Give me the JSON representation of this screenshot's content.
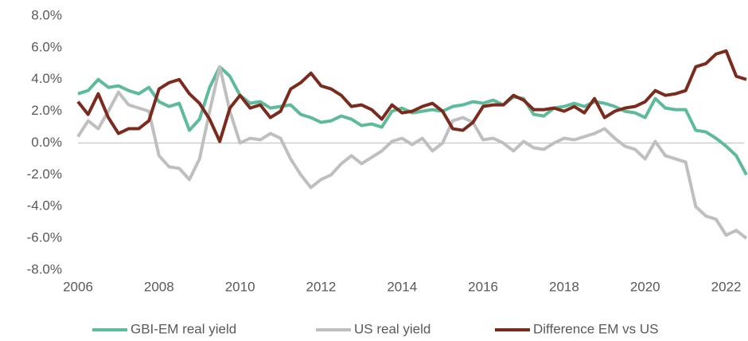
{
  "chart_data": {
    "type": "line",
    "x": [
      2006,
      2006.25,
      2006.5,
      2006.75,
      2007,
      2007.25,
      2007.5,
      2007.75,
      2008,
      2008.25,
      2008.5,
      2008.75,
      2009,
      2009.25,
      2009.5,
      2009.75,
      2010,
      2010.25,
      2010.5,
      2010.75,
      2011,
      2011.25,
      2011.5,
      2011.75,
      2012,
      2012.25,
      2012.5,
      2012.75,
      2013,
      2013.25,
      2013.5,
      2013.75,
      2014,
      2014.25,
      2014.5,
      2014.75,
      2015,
      2015.25,
      2015.5,
      2015.75,
      2016,
      2016.25,
      2016.5,
      2016.75,
      2017,
      2017.25,
      2017.5,
      2017.75,
      2018,
      2018.25,
      2018.5,
      2018.75,
      2019,
      2019.25,
      2019.5,
      2019.75,
      2020,
      2020.25,
      2020.5,
      2020.75,
      2021,
      2021.25,
      2021.5,
      2021.75,
      2022,
      2022.25,
      2022.5
    ],
    "series": [
      {
        "name": "GBI-EM real yield",
        "color": "#5dbb9a",
        "values": [
          3.1,
          3.3,
          4.0,
          3.5,
          3.6,
          3.3,
          3.1,
          3.5,
          2.6,
          2.3,
          2.5,
          0.8,
          1.5,
          3.5,
          4.8,
          4.2,
          3.0,
          2.5,
          2.6,
          2.2,
          2.3,
          2.4,
          1.8,
          1.6,
          1.3,
          1.4,
          1.7,
          1.5,
          1.1,
          1.2,
          1.0,
          2.0,
          2.2,
          1.9,
          2.0,
          2.1,
          2.0,
          2.3,
          2.4,
          2.6,
          2.5,
          2.7,
          2.4,
          2.9,
          2.8,
          1.8,
          1.7,
          2.2,
          2.3,
          2.5,
          2.3,
          2.6,
          2.5,
          2.3,
          2.0,
          1.9,
          1.6,
          2.8,
          2.2,
          2.1,
          2.1,
          0.8,
          0.7,
          0.3,
          -0.2,
          -0.8,
          -2.0
        ]
      },
      {
        "name": "US real yield",
        "color": "#bfbfbf",
        "values": [
          0.4,
          1.4,
          0.9,
          2.0,
          3.2,
          2.4,
          2.2,
          2.0,
          -0.8,
          -1.5,
          -1.6,
          -2.3,
          -1.0,
          2.0,
          4.8,
          2.0,
          0.0,
          0.3,
          0.2,
          0.6,
          0.3,
          -1.0,
          -2.0,
          -2.8,
          -2.3,
          -2.0,
          -1.3,
          -0.8,
          -1.3,
          -0.9,
          -0.5,
          0.1,
          0.3,
          -0.1,
          0.3,
          -0.5,
          0.0,
          1.4,
          1.6,
          1.3,
          0.2,
          0.3,
          0.0,
          -0.5,
          0.1,
          -0.3,
          -0.4,
          0.0,
          0.3,
          0.2,
          0.4,
          0.6,
          0.9,
          0.3,
          -0.2,
          -0.4,
          -1.0,
          0.1,
          -0.8,
          -1.0,
          -1.2,
          -4.0,
          -4.6,
          -4.8,
          -5.8,
          -5.5,
          -6.0
        ]
      },
      {
        "name": "Difference EM vs US",
        "color": "#7b2a1e",
        "values": [
          2.6,
          1.8,
          3.1,
          1.6,
          0.6,
          0.9,
          0.9,
          1.4,
          3.4,
          3.8,
          4.0,
          3.1,
          2.5,
          1.5,
          0.1,
          2.2,
          3.0,
          2.2,
          2.4,
          1.6,
          2.0,
          3.4,
          3.8,
          4.4,
          3.6,
          3.4,
          3.0,
          2.3,
          2.4,
          2.1,
          1.5,
          2.4,
          1.9,
          2.0,
          2.3,
          2.5,
          2.0,
          0.9,
          0.8,
          1.3,
          2.3,
          2.4,
          2.4,
          3.0,
          2.7,
          2.1,
          2.1,
          2.2,
          2.0,
          2.3,
          1.9,
          2.8,
          1.6,
          2.0,
          2.2,
          2.3,
          2.6,
          3.3,
          3.0,
          3.1,
          3.3,
          4.8,
          5.0,
          5.6,
          5.8,
          4.2,
          4.0
        ]
      }
    ],
    "xlim": [
      2006,
      2022.5
    ],
    "xticks": [
      2006,
      2008,
      2010,
      2012,
      2014,
      2016,
      2018,
      2020,
      2022
    ],
    "ylim": [
      -8,
      8
    ],
    "yticks": [
      {
        "value": -8,
        "label": "-8.0%"
      },
      {
        "value": -6,
        "label": "-6.0%"
      },
      {
        "value": -4,
        "label": "-4.0%"
      },
      {
        "value": -2,
        "label": "-2.0%"
      },
      {
        "value": 0,
        "label": "0.0%"
      },
      {
        "value": 2,
        "label": "2.0%"
      },
      {
        "value": 4,
        "label": "4.0%"
      },
      {
        "value": 6,
        "label": "6.0%"
      },
      {
        "value": 8,
        "label": "8.0%"
      }
    ],
    "legend": "bottom"
  }
}
